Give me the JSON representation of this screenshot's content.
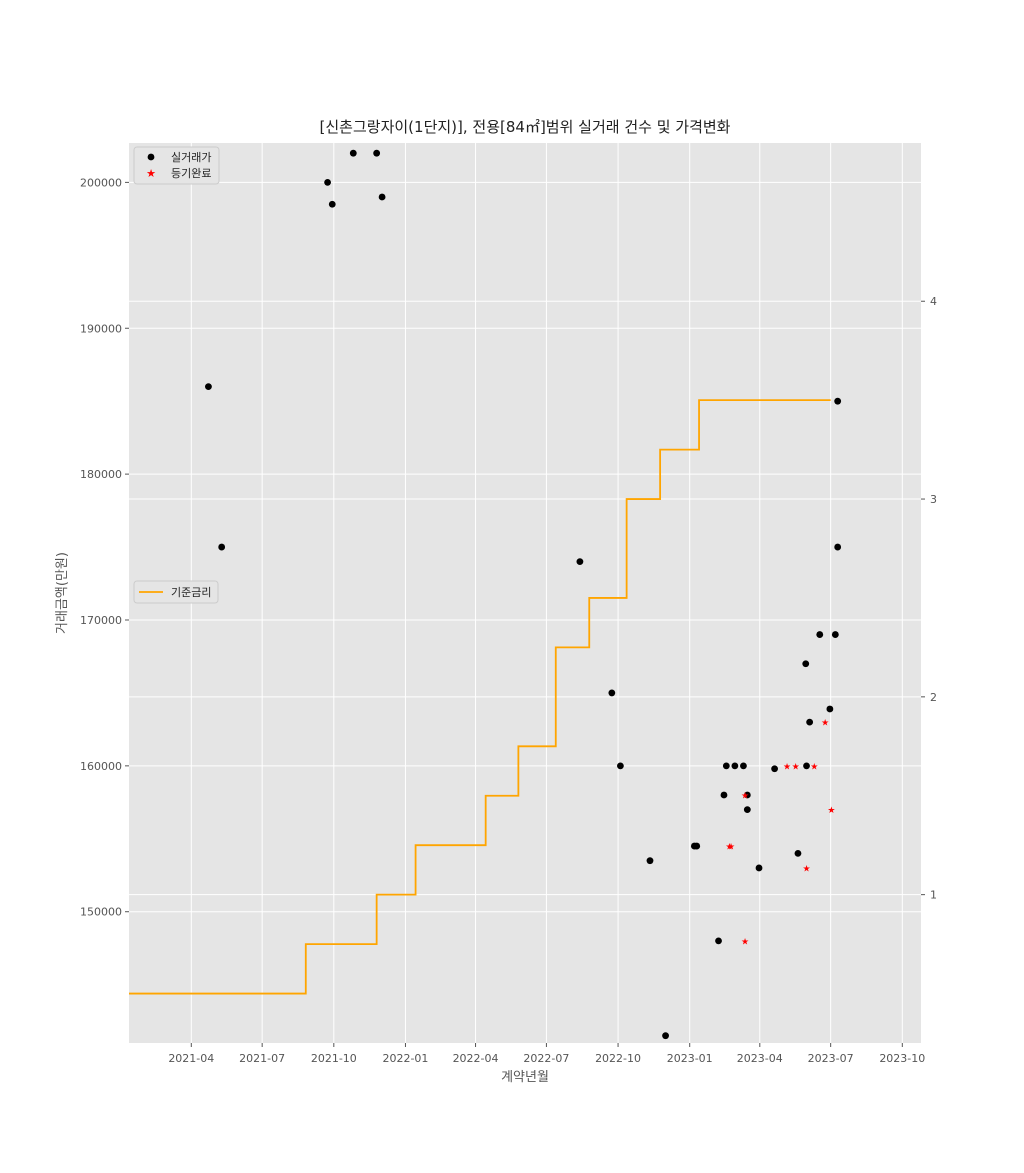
{
  "chart_data": {
    "type": "scatter",
    "title": "[신촌그랑자이(1단지)], 전용[84㎡]범위 실거래 건수 및 가격변화",
    "xlabel": "계약년월",
    "ylabel": "거래금액(만원)",
    "x_ticks": [
      "2021-04",
      "2021-07",
      "2021-10",
      "2022-01",
      "2022-04",
      "2022-07",
      "2022-10",
      "2023-01",
      "2023-04",
      "2023-07",
      "2023-10"
    ],
    "xlim": [
      "2021-01-11",
      "2023-10-25"
    ],
    "y_ticks": [
      150000,
      160000,
      170000,
      180000,
      190000,
      200000
    ],
    "ylim": [
      141000,
      202700
    ],
    "y2_ticks": [
      1,
      2,
      3,
      4
    ],
    "y2lim": [
      0.25,
      4.8
    ],
    "grid": true,
    "legend_top": {
      "placement": "top-left",
      "entries": [
        {
          "label": "실거래가",
          "color": "#000000"
        },
        {
          "label": "등기완료",
          "color": "#ff0000"
        }
      ]
    },
    "legend_mid": {
      "placement": "center-left",
      "entries": [
        {
          "label": "기준금리",
          "color": "#ffa500"
        }
      ]
    },
    "series": [
      {
        "name": "실거래가",
        "color": "#000000",
        "marker": "circle",
        "points": [
          [
            "2021-04-23",
            186000
          ],
          [
            "2021-05-10",
            175000
          ],
          [
            "2021-09-23",
            200000
          ],
          [
            "2021-09-29",
            198500
          ],
          [
            "2021-10-26",
            202000
          ],
          [
            "2021-11-25",
            202000
          ],
          [
            "2021-12-02",
            199000
          ],
          [
            "2022-08-13",
            174000
          ],
          [
            "2022-09-23",
            165000
          ],
          [
            "2022-10-04",
            160000
          ],
          [
            "2022-11-11",
            153500
          ],
          [
            "2022-12-01",
            141500
          ],
          [
            "2023-01-07",
            154500
          ],
          [
            "2023-01-10",
            154500
          ],
          [
            "2023-02-07",
            148000
          ],
          [
            "2023-02-14",
            158000
          ],
          [
            "2023-02-17",
            160000
          ],
          [
            "2023-02-28",
            160000
          ],
          [
            "2023-03-11",
            160000
          ],
          [
            "2023-03-16",
            158000
          ],
          [
            "2023-03-16",
            157000
          ],
          [
            "2023-03-31",
            153000
          ],
          [
            "2023-04-20",
            159800
          ],
          [
            "2023-05-20",
            154000
          ],
          [
            "2023-05-30",
            167000
          ],
          [
            "2023-05-31",
            160000
          ],
          [
            "2023-06-04",
            163000
          ],
          [
            "2023-06-17",
            169000
          ],
          [
            "2023-06-30",
            163900
          ],
          [
            "2023-07-07",
            169000
          ],
          [
            "2023-07-10",
            185000
          ],
          [
            "2023-07-10",
            175000
          ]
        ]
      },
      {
        "name": "등기완료",
        "color": "#ff0000",
        "marker": "star",
        "points": [
          [
            "2023-02-21",
            154500
          ],
          [
            "2023-02-23",
            154500
          ],
          [
            "2023-03-13",
            148000
          ],
          [
            "2023-03-13",
            158000
          ],
          [
            "2023-05-06",
            160000
          ],
          [
            "2023-05-17",
            160000
          ],
          [
            "2023-05-31",
            153000
          ],
          [
            "2023-06-10",
            160000
          ],
          [
            "2023-06-24",
            163000
          ],
          [
            "2023-07-02",
            157000
          ]
        ]
      }
    ],
    "rate_series": {
      "name": "기준금리",
      "color": "#ffa500",
      "axis": "right",
      "steps": [
        [
          "2021-01-11",
          0.5
        ],
        [
          "2021-08-26",
          0.75
        ],
        [
          "2021-11-25",
          1.0
        ],
        [
          "2022-01-14",
          1.25
        ],
        [
          "2022-04-14",
          1.5
        ],
        [
          "2022-05-26",
          1.75
        ],
        [
          "2022-07-13",
          2.25
        ],
        [
          "2022-08-25",
          2.5
        ],
        [
          "2022-10-12",
          3.0
        ],
        [
          "2022-11-24",
          3.25
        ],
        [
          "2023-01-13",
          3.5
        ],
        [
          "2023-07-01",
          3.5
        ]
      ]
    }
  }
}
